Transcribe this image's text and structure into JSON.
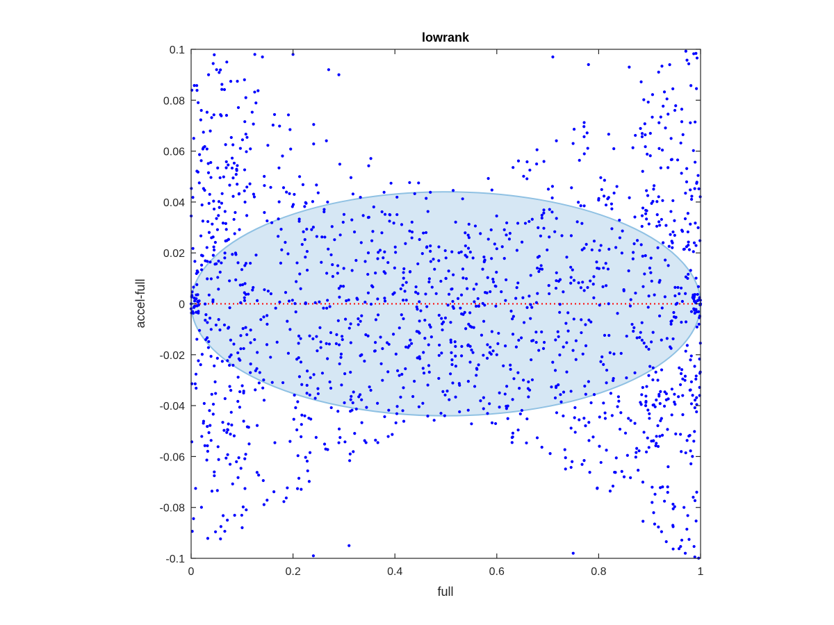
{
  "chart_data": {
    "type": "scatter",
    "title": "lowrank",
    "xlabel": "full",
    "ylabel": "accel-full",
    "xlim": [
      0,
      1
    ],
    "ylim": [
      -0.1,
      0.1
    ],
    "x_ticks": [
      0,
      0.2,
      0.4,
      0.6,
      0.8,
      1
    ],
    "x_tick_labels": [
      "0",
      "0.2",
      "0.4",
      "0.6",
      "0.8",
      "1"
    ],
    "y_ticks": [
      -0.1,
      -0.08,
      -0.06,
      -0.04,
      -0.02,
      0,
      0.02,
      0.04,
      0.06,
      0.08,
      0.1
    ],
    "y_tick_labels": [
      "-0.1",
      "-0.08",
      "-0.06",
      "-0.04",
      "-0.02",
      "0",
      "0.02",
      "0.04",
      "0.06",
      "0.08",
      "0.1"
    ],
    "grid": false,
    "box": true,
    "colors": {
      "points": "#0000ff",
      "ellipse_fill": "#d6e7f4",
      "ellipse_edge": "#8fc1e3",
      "zero_line": "#ff0000",
      "axes": "#262626"
    },
    "reference_line": {
      "y": 0,
      "style": "dotted"
    },
    "ellipse": {
      "center": [
        0.5,
        0
      ],
      "semi_x": 0.5,
      "semi_y": 0.044
    },
    "points": {
      "count_approx": 1500,
      "description_note": "scatter of residuals; y spread widest near x=0 and x=1, dense near y=0 around x=0.3-0.8",
      "sample": [
        [
          0.02,
          0.076
        ],
        [
          0.05,
          0.092
        ],
        [
          0.07,
          0.095
        ],
        [
          0.125,
          0.098
        ],
        [
          0.14,
          0.097
        ],
        [
          0.2,
          0.098
        ],
        [
          0.27,
          0.092
        ],
        [
          0.29,
          0.09
        ],
        [
          0.71,
          0.097
        ],
        [
          0.78,
          0.094
        ],
        [
          0.86,
          0.093
        ],
        [
          0.24,
          -0.099
        ],
        [
          0.31,
          -0.095
        ],
        [
          0.75,
          -0.098
        ],
        [
          0.97,
          -0.098
        ],
        [
          0.0,
          0.0
        ],
        [
          0.01,
          0.002
        ],
        [
          1.0,
          0.0
        ],
        [
          0.5,
          0.01
        ],
        [
          0.6,
          -0.02
        ]
      ]
    }
  }
}
